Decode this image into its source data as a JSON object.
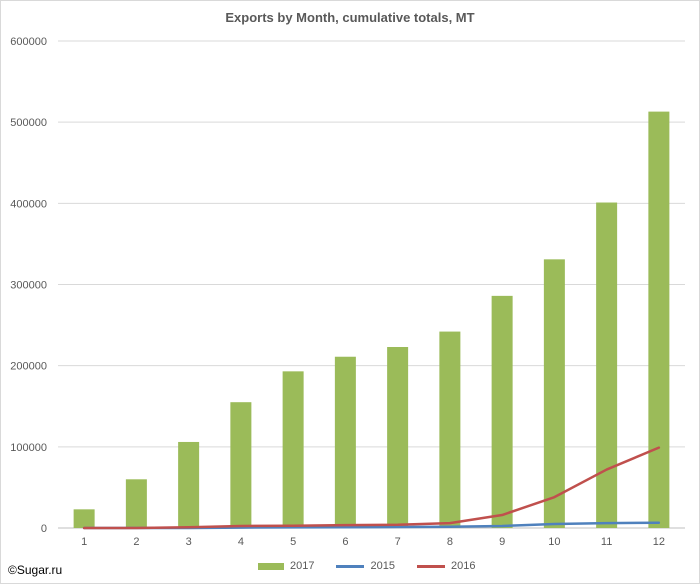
{
  "chart_data": {
    "type": "bar",
    "title": "Exports by Month, cumulative totals, MT",
    "categories": [
      "1",
      "2",
      "3",
      "4",
      "5",
      "6",
      "7",
      "8",
      "9",
      "10",
      "11",
      "12"
    ],
    "ylim": [
      0,
      600000
    ],
    "yticks": [
      0,
      100000,
      200000,
      300000,
      400000,
      500000,
      600000
    ],
    "ytick_labels": [
      "0",
      "100000",
      "200000",
      "300000",
      "400000",
      "500000",
      "600000"
    ],
    "grid": true,
    "legend_position": "bottom",
    "series": [
      {
        "name": "2017",
        "kind": "bar",
        "color": "#9bbb59",
        "values": [
          23000,
          60000,
          106000,
          155000,
          193000,
          211000,
          223000,
          242000,
          286000,
          331000,
          401000,
          513000
        ]
      },
      {
        "name": "2015",
        "kind": "line",
        "color": "#4f81bd",
        "values": [
          0,
          0,
          0,
          500,
          800,
          1000,
          1200,
          1500,
          2500,
          5000,
          6000,
          6500
        ]
      },
      {
        "name": "2016",
        "kind": "line",
        "color": "#c0504d",
        "values": [
          0,
          0,
          1000,
          2500,
          2800,
          3500,
          4000,
          6000,
          16000,
          38000,
          72000,
          99000
        ]
      }
    ]
  },
  "credit": "©Sugar.ru"
}
